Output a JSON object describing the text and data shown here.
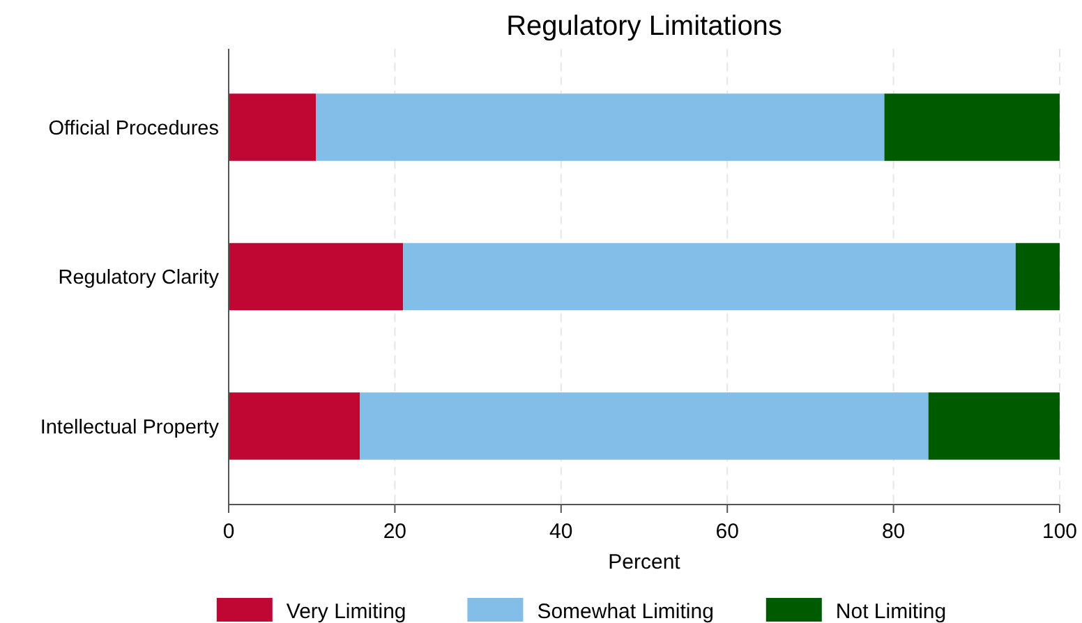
{
  "chart_data": {
    "type": "bar",
    "orientation": "horizontal",
    "stacked": true,
    "title": "Regulatory Limitations",
    "xlabel": "Percent",
    "categories": [
      "Official Procedures",
      "Regulatory Clarity",
      "Intellectual Property"
    ],
    "series": [
      {
        "name": "Very Limiting",
        "color": "#c00633",
        "values": [
          10.5,
          21.0,
          15.8
        ]
      },
      {
        "name": "Somewhat Limiting",
        "color": "#82bee8",
        "values": [
          68.4,
          73.7,
          68.4
        ]
      },
      {
        "name": "Not Limiting",
        "color": "#005b00",
        "values": [
          21.1,
          5.3,
          15.8
        ]
      }
    ],
    "xlim": [
      0,
      100
    ],
    "xticks": [
      0,
      20,
      40,
      60,
      80,
      100
    ],
    "grid": "x",
    "legend": "bottom"
  }
}
